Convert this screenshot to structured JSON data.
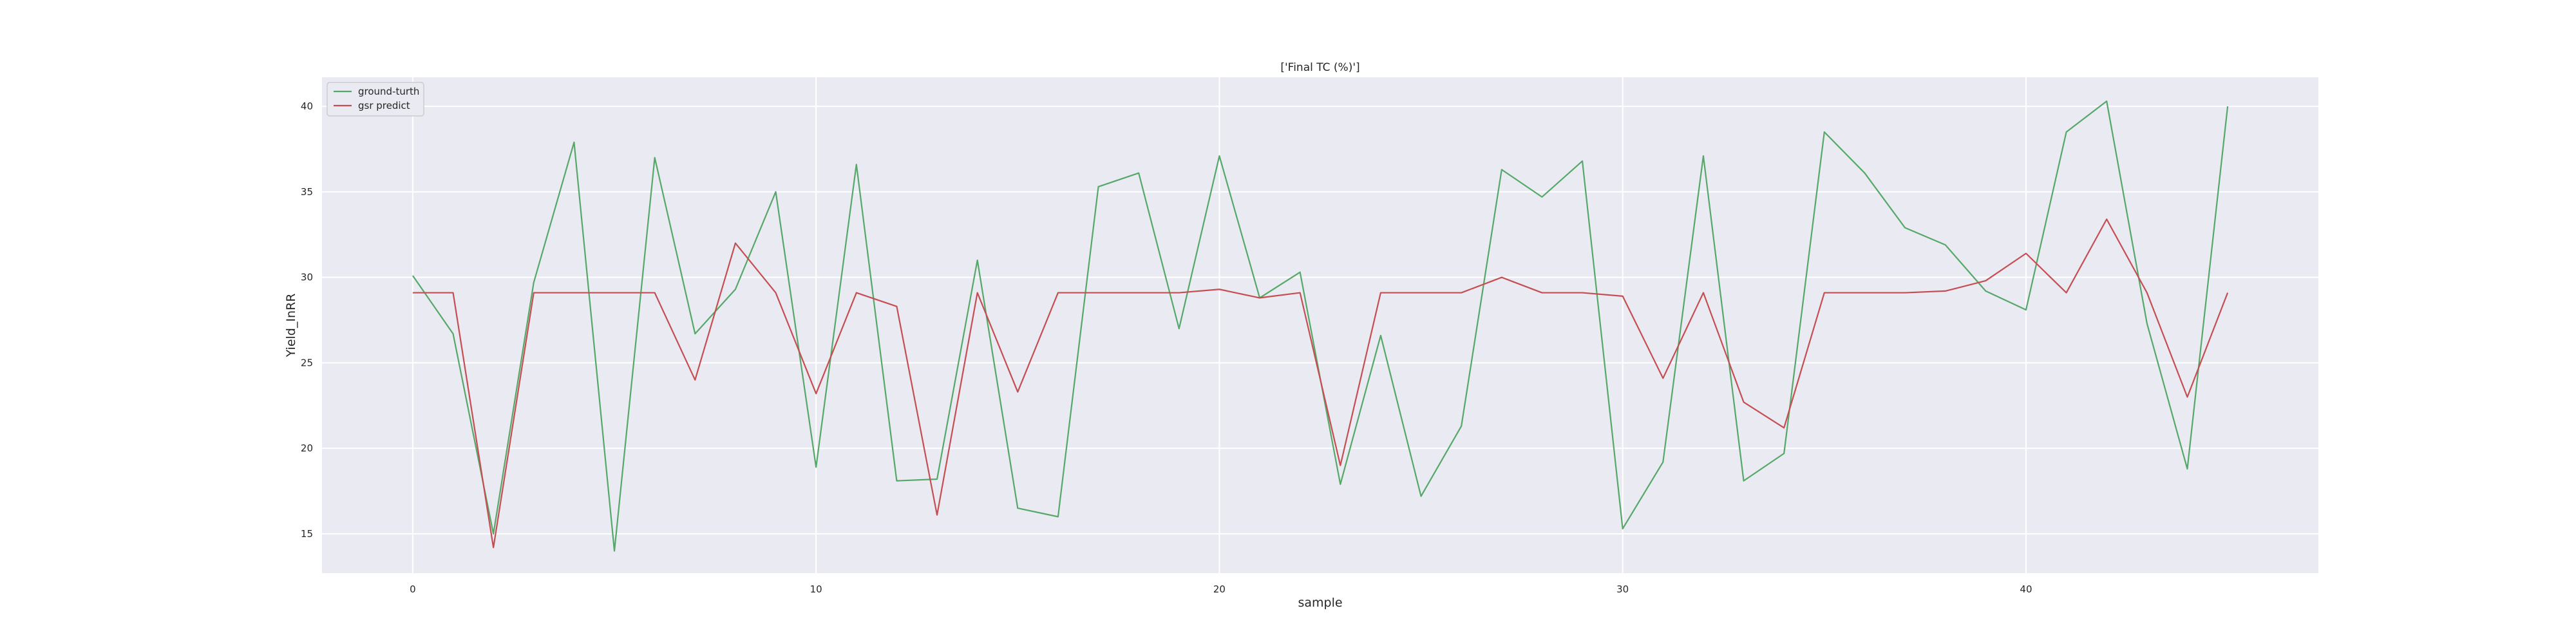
{
  "chart_data": {
    "type": "line",
    "title": "['Final TC (%)']",
    "xlabel": "sample",
    "ylabel": "Yield_InRR",
    "xlim": [
      -2.25,
      47.25
    ],
    "ylim": [
      12.7,
      41.7
    ],
    "xticks": [
      0,
      10,
      20,
      30,
      40
    ],
    "yticks": [
      15,
      20,
      25,
      30,
      35,
      40
    ],
    "grid": true,
    "legend_position": "top-left",
    "x": [
      0,
      1,
      2,
      3,
      4,
      5,
      6,
      7,
      8,
      9,
      10,
      11,
      12,
      13,
      14,
      15,
      16,
      17,
      18,
      19,
      20,
      21,
      22,
      23,
      24,
      25,
      26,
      27,
      28,
      29,
      30,
      31,
      32,
      33,
      34,
      35,
      36,
      37,
      38,
      39,
      40,
      41,
      42,
      43,
      44,
      45
    ],
    "series": [
      {
        "name": "ground-turth",
        "color": "#55a868",
        "values": [
          30.1,
          26.7,
          15.0,
          29.7,
          37.9,
          14.0,
          37.0,
          26.7,
          29.3,
          35.0,
          18.9,
          36.6,
          18.1,
          18.2,
          31.0,
          16.5,
          16.0,
          35.3,
          36.1,
          27.0,
          37.1,
          28.8,
          30.3,
          17.9,
          26.6,
          17.2,
          21.3,
          36.3,
          34.7,
          36.8,
          15.3,
          19.2,
          37.1,
          18.1,
          19.7,
          38.5,
          36.1,
          32.9,
          31.9,
          29.2,
          28.1,
          38.5,
          40.3,
          27.3,
          18.8,
          40.0
        ]
      },
      {
        "name": "gsr predict",
        "color": "#c44e52",
        "values": [
          29.1,
          29.1,
          14.2,
          29.1,
          29.1,
          29.1,
          29.1,
          24.0,
          32.0,
          29.1,
          23.2,
          29.1,
          28.3,
          16.1,
          29.1,
          23.3,
          29.1,
          29.1,
          29.1,
          29.1,
          29.3,
          28.8,
          29.1,
          19.0,
          29.1,
          29.1,
          29.1,
          30.0,
          29.1,
          29.1,
          28.9,
          24.1,
          29.1,
          22.7,
          21.2,
          29.1,
          29.1,
          29.1,
          29.2,
          29.8,
          31.4,
          29.1,
          33.4,
          29.1,
          23.0,
          29.1
        ]
      }
    ]
  }
}
